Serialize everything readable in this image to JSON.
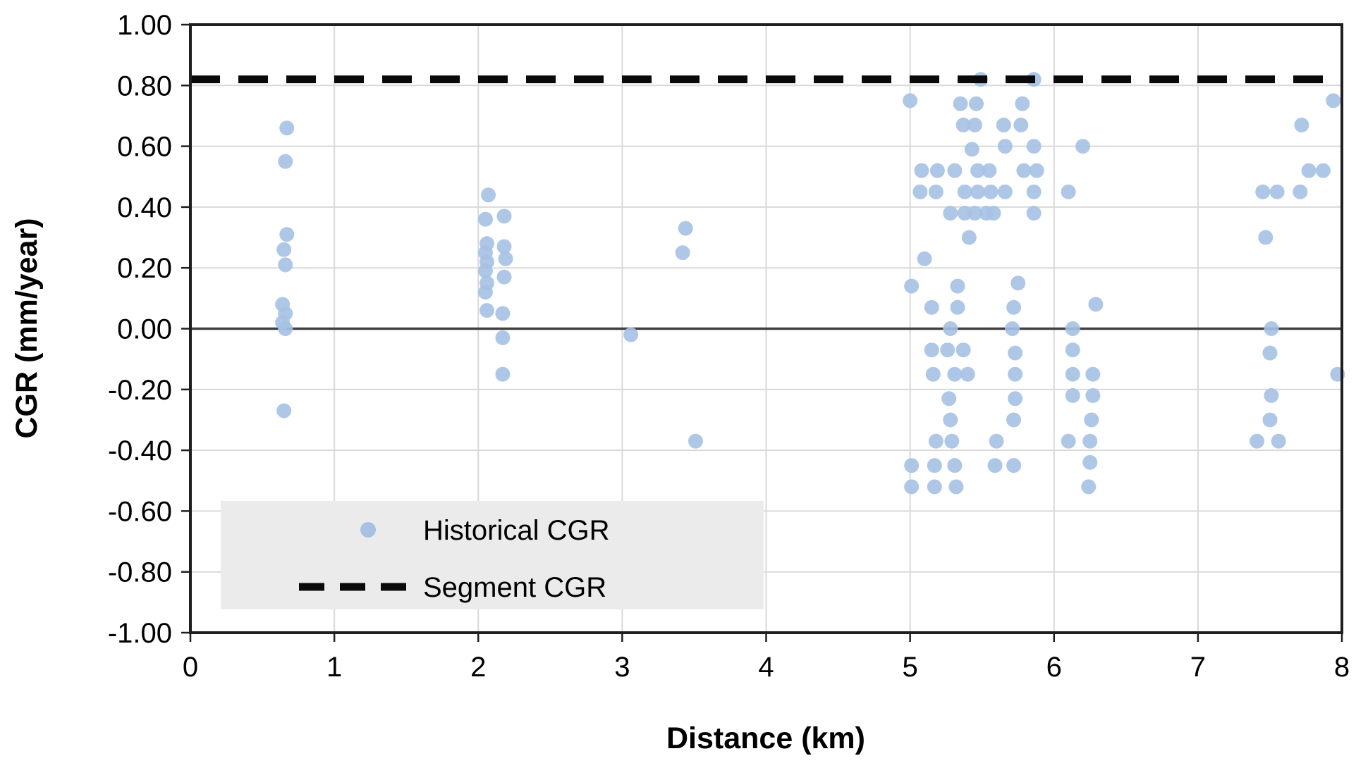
{
  "chart_data": {
    "type": "scatter",
    "title": "",
    "xlabel": "Distance (km)",
    "ylabel": "CGR (mm/year)",
    "xlim": [
      0,
      8
    ],
    "ylim": [
      -1.0,
      1.0
    ],
    "grid": true,
    "xticks": {
      "values": [
        0,
        1,
        2,
        3,
        4,
        5,
        6,
        7,
        8
      ],
      "labels": [
        "0",
        "1",
        "2",
        "3",
        "4",
        "5",
        "6",
        "7",
        "8"
      ]
    },
    "yticks": {
      "values": [
        1.0,
        0.8,
        0.6,
        0.4,
        0.2,
        0.0,
        -0.2,
        -0.4,
        -0.6,
        -0.8,
        -1.0
      ],
      "labels": [
        "1.00",
        "0.80",
        "0.60",
        "0.40",
        "0.20",
        "0.00",
        "-0.20",
        "-0.40",
        "-0.60",
        "-0.80",
        "-1.00"
      ]
    },
    "legend": {
      "position": "inside-bottom-left",
      "background": "#ebebeb"
    },
    "series": [
      {
        "name": "Historical CGR",
        "type": "scatter",
        "marker": "circle",
        "color": "#a6c1e4",
        "points": [
          [
            0.67,
            0.66
          ],
          [
            0.66,
            0.55
          ],
          [
            0.67,
            0.31
          ],
          [
            0.65,
            0.26
          ],
          [
            0.66,
            0.21
          ],
          [
            0.64,
            0.08
          ],
          [
            0.66,
            0.05
          ],
          [
            0.64,
            0.02
          ],
          [
            0.66,
            0.0
          ],
          [
            0.65,
            -0.27
          ],
          [
            2.07,
            0.44
          ],
          [
            2.18,
            0.37
          ],
          [
            2.05,
            0.36
          ],
          [
            2.06,
            0.28
          ],
          [
            2.18,
            0.27
          ],
          [
            2.05,
            0.25
          ],
          [
            2.19,
            0.23
          ],
          [
            2.06,
            0.22
          ],
          [
            2.05,
            0.19
          ],
          [
            2.18,
            0.17
          ],
          [
            2.06,
            0.15
          ],
          [
            2.05,
            0.12
          ],
          [
            2.06,
            0.06
          ],
          [
            2.17,
            0.05
          ],
          [
            2.17,
            -0.03
          ],
          [
            2.17,
            -0.15
          ],
          [
            3.06,
            -0.02
          ],
          [
            3.44,
            0.33
          ],
          [
            3.42,
            0.25
          ],
          [
            3.51,
            -0.37
          ],
          [
            5.49,
            0.82
          ],
          [
            5.86,
            0.82
          ],
          [
            5.0,
            0.75
          ],
          [
            5.35,
            0.74
          ],
          [
            5.46,
            0.74
          ],
          [
            5.78,
            0.74
          ],
          [
            5.37,
            0.67
          ],
          [
            5.45,
            0.67
          ],
          [
            5.65,
            0.67
          ],
          [
            5.77,
            0.67
          ],
          [
            5.43,
            0.59
          ],
          [
            5.66,
            0.6
          ],
          [
            5.86,
            0.6
          ],
          [
            6.2,
            0.6
          ],
          [
            5.08,
            0.52
          ],
          [
            5.19,
            0.52
          ],
          [
            5.31,
            0.52
          ],
          [
            5.47,
            0.52
          ],
          [
            5.55,
            0.52
          ],
          [
            5.79,
            0.52
          ],
          [
            5.88,
            0.52
          ],
          [
            5.07,
            0.45
          ],
          [
            5.18,
            0.45
          ],
          [
            5.38,
            0.45
          ],
          [
            5.47,
            0.45
          ],
          [
            5.56,
            0.45
          ],
          [
            5.66,
            0.45
          ],
          [
            5.86,
            0.45
          ],
          [
            6.1,
            0.45
          ],
          [
            5.28,
            0.38
          ],
          [
            5.38,
            0.38
          ],
          [
            5.45,
            0.38
          ],
          [
            5.53,
            0.38
          ],
          [
            5.58,
            0.38
          ],
          [
            5.86,
            0.38
          ],
          [
            5.41,
            0.3
          ],
          [
            5.1,
            0.23
          ],
          [
            5.75,
            0.15
          ],
          [
            5.01,
            0.14
          ],
          [
            5.33,
            0.14
          ],
          [
            5.15,
            0.07
          ],
          [
            5.33,
            0.07
          ],
          [
            5.72,
            0.07
          ],
          [
            6.29,
            0.08
          ],
          [
            5.28,
            0.0
          ],
          [
            5.71,
            0.0
          ],
          [
            6.13,
            0.0
          ],
          [
            5.15,
            -0.07
          ],
          [
            5.26,
            -0.07
          ],
          [
            5.37,
            -0.07
          ],
          [
            5.73,
            -0.08
          ],
          [
            6.13,
            -0.07
          ],
          [
            5.16,
            -0.15
          ],
          [
            5.31,
            -0.15
          ],
          [
            5.4,
            -0.15
          ],
          [
            5.73,
            -0.15
          ],
          [
            6.13,
            -0.15
          ],
          [
            6.27,
            -0.15
          ],
          [
            5.27,
            -0.23
          ],
          [
            5.73,
            -0.23
          ],
          [
            6.13,
            -0.22
          ],
          [
            6.27,
            -0.22
          ],
          [
            5.28,
            -0.3
          ],
          [
            5.72,
            -0.3
          ],
          [
            6.26,
            -0.3
          ],
          [
            5.18,
            -0.37
          ],
          [
            5.29,
            -0.37
          ],
          [
            5.6,
            -0.37
          ],
          [
            6.1,
            -0.37
          ],
          [
            6.25,
            -0.37
          ],
          [
            5.01,
            -0.45
          ],
          [
            5.17,
            -0.45
          ],
          [
            5.31,
            -0.45
          ],
          [
            5.59,
            -0.45
          ],
          [
            5.72,
            -0.45
          ],
          [
            6.25,
            -0.44
          ],
          [
            5.01,
            -0.52
          ],
          [
            5.17,
            -0.52
          ],
          [
            5.32,
            -0.52
          ],
          [
            6.24,
            -0.52
          ],
          [
            7.72,
            0.67
          ],
          [
            7.77,
            0.52
          ],
          [
            7.87,
            0.52
          ],
          [
            7.45,
            0.45
          ],
          [
            7.55,
            0.45
          ],
          [
            7.71,
            0.45
          ],
          [
            7.47,
            0.3
          ],
          [
            7.51,
            0.0
          ],
          [
            7.5,
            -0.08
          ],
          [
            7.51,
            -0.22
          ],
          [
            7.5,
            -0.3
          ],
          [
            7.41,
            -0.37
          ],
          [
            7.56,
            -0.37
          ],
          [
            7.94,
            0.75
          ],
          [
            7.97,
            -0.15
          ]
        ]
      },
      {
        "name": "Segment CGR",
        "type": "hline-dashed",
        "color": "#0a0a0a",
        "value": 0.82
      }
    ]
  },
  "colors": {
    "point_fill": "#a6c1e4",
    "gridline": "#d9d9d9",
    "zero_line": "#404040",
    "plot_border": "#1f1f1f",
    "dashed_line": "#0a0a0a",
    "legend_bg": "#ebebeb",
    "background": "#ffffff"
  }
}
